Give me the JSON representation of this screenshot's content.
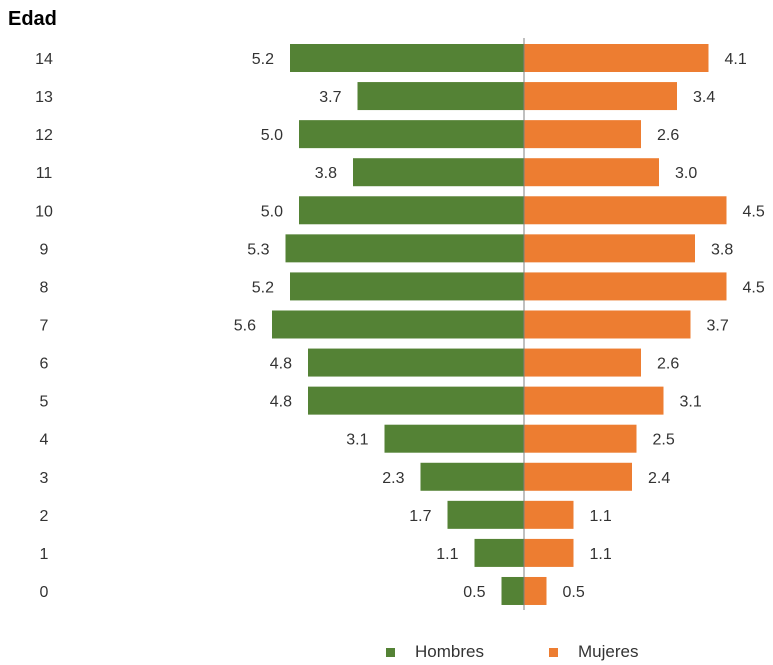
{
  "chart_data": {
    "type": "bar",
    "orientation": "horizontal-pyramid",
    "title": "",
    "ylabel": "Edad",
    "xlabel": "",
    "categories": [
      "14",
      "13",
      "12",
      "11",
      "10",
      "9",
      "8",
      "7",
      "6",
      "5",
      "4",
      "3",
      "2",
      "1",
      "0"
    ],
    "series": [
      {
        "name": "Hombres",
        "color": "#548235",
        "side": "left",
        "values": [
          5.2,
          3.7,
          5.0,
          3.8,
          5.0,
          5.3,
          5.2,
          5.6,
          4.8,
          4.8,
          3.1,
          2.3,
          1.7,
          1.1,
          0.5
        ],
        "labels": [
          "5.2",
          "3.7",
          "5.0",
          "3.8",
          "5.0",
          "5.3",
          "5.2",
          "5.6",
          "4.8",
          "4.8",
          "3.1",
          "2.3",
          "1.7",
          "1.1",
          "0.5"
        ]
      },
      {
        "name": "Mujeres",
        "color": "#ED7D31",
        "side": "right",
        "values": [
          4.1,
          3.4,
          2.6,
          3.0,
          4.5,
          3.8,
          4.5,
          3.7,
          2.6,
          3.1,
          2.5,
          2.4,
          1.1,
          1.1,
          0.5
        ],
        "labels": [
          "4.1",
          "3.4",
          "2.6",
          "3.0",
          "4.5",
          "3.8",
          "4.5",
          "3.7",
          "2.6",
          "3.1",
          "2.5",
          "2.4",
          "1.1",
          "1.1",
          "0.5"
        ]
      }
    ],
    "grid": false,
    "legend_position": "bottom",
    "axis_color": "#808080"
  }
}
